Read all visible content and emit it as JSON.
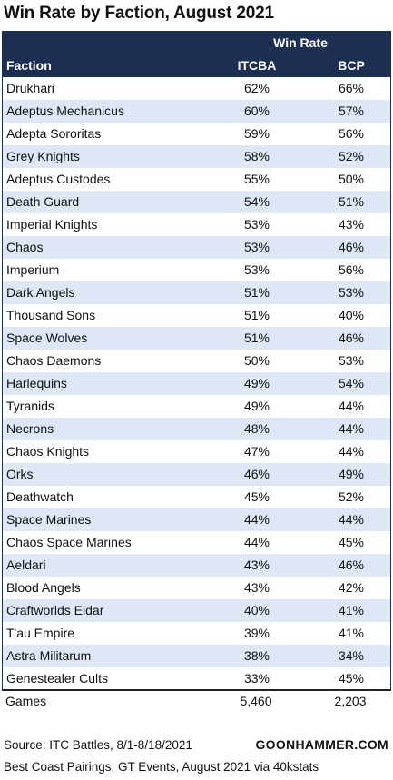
{
  "chart_data": {
    "type": "table",
    "title": "Win Rate by Faction, August 2021",
    "group_header": "Win Rate",
    "columns": [
      "Faction",
      "ITCBA",
      "BCP"
    ],
    "rows": [
      {
        "faction": "Drukhari",
        "itcba": "62%",
        "bcp": "66%"
      },
      {
        "faction": "Adeptus Mechanicus",
        "itcba": "60%",
        "bcp": "57%"
      },
      {
        "faction": "Adepta Sororitas",
        "itcba": "59%",
        "bcp": "56%"
      },
      {
        "faction": "Grey Knights",
        "itcba": "58%",
        "bcp": "52%"
      },
      {
        "faction": "Adeptus Custodes",
        "itcba": "55%",
        "bcp": "50%"
      },
      {
        "faction": "Death Guard",
        "itcba": "54%",
        "bcp": "51%"
      },
      {
        "faction": "Imperial Knights",
        "itcba": "53%",
        "bcp": "43%"
      },
      {
        "faction": "Chaos",
        "itcba": "53%",
        "bcp": "46%"
      },
      {
        "faction": "Imperium",
        "itcba": "53%",
        "bcp": "56%"
      },
      {
        "faction": "Dark Angels",
        "itcba": "51%",
        "bcp": "53%"
      },
      {
        "faction": "Thousand Sons",
        "itcba": "51%",
        "bcp": "40%"
      },
      {
        "faction": "Space Wolves",
        "itcba": "51%",
        "bcp": "46%"
      },
      {
        "faction": "Chaos Daemons",
        "itcba": "50%",
        "bcp": "53%"
      },
      {
        "faction": "Harlequins",
        "itcba": "49%",
        "bcp": "54%"
      },
      {
        "faction": "Tyranids",
        "itcba": "49%",
        "bcp": "44%"
      },
      {
        "faction": "Necrons",
        "itcba": "48%",
        "bcp": "44%"
      },
      {
        "faction": "Chaos Knights",
        "itcba": "47%",
        "bcp": "44%"
      },
      {
        "faction": "Orks",
        "itcba": "46%",
        "bcp": "49%"
      },
      {
        "faction": "Deathwatch",
        "itcba": "45%",
        "bcp": "52%"
      },
      {
        "faction": "Space Marines",
        "itcba": "44%",
        "bcp": "44%"
      },
      {
        "faction": "Chaos Space Marines",
        "itcba": "44%",
        "bcp": "45%"
      },
      {
        "faction": "Aeldari",
        "itcba": "43%",
        "bcp": "46%"
      },
      {
        "faction": "Blood Angels",
        "itcba": "43%",
        "bcp": "42%"
      },
      {
        "faction": "Craftworlds Eldar",
        "itcba": "40%",
        "bcp": "41%"
      },
      {
        "faction": "T'au Empire",
        "itcba": "39%",
        "bcp": "41%"
      },
      {
        "faction": "Astra Militarum",
        "itcba": "38%",
        "bcp": "34%"
      },
      {
        "faction": "Genestealer Cults",
        "itcba": "33%",
        "bcp": "45%"
      }
    ],
    "totals": {
      "label": "Games",
      "itcba": "5,460",
      "bcp": "2,203"
    },
    "header_color": "#1c2f52",
    "stripe_color": "#dde7f5"
  },
  "footer": {
    "source_line1": "Source: ITC Battles, 8/1-8/18/2021",
    "source_line2": "Best Coast Pairings, GT Events, August 2021 via 40kstats",
    "brand": "GOONHAMMER.COM"
  }
}
